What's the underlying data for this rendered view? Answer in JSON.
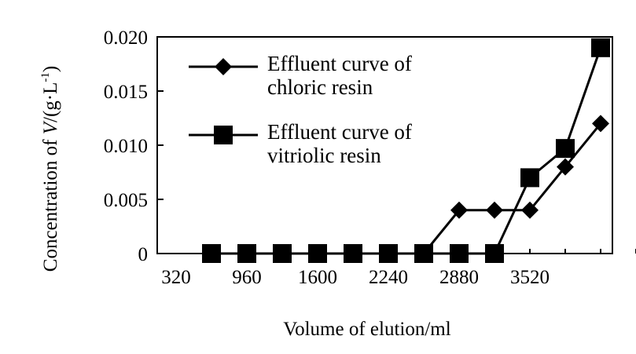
{
  "chart_data": {
    "type": "line",
    "xlabel": "Volume of elution/ml",
    "ylabel": "Concentration of V/(g·L⁻¹)",
    "ylabel_parts": {
      "prefix": "Concentration of ",
      "symbol": "V",
      "middle": "/(g·L",
      "superscript": "-1",
      "suffix": ")"
    },
    "xlim": [
      320,
      4480
    ],
    "ylim": [
      0,
      0.02
    ],
    "x_tick_labels": [
      "320",
      "960",
      "1600",
      "2240",
      "2880",
      "3520"
    ],
    "y_ticks": [
      0,
      0.005,
      0.01,
      0.015,
      0.02
    ],
    "y_tick_labels": [
      "0",
      "0.005",
      "0.010",
      "0.015",
      "0.020"
    ],
    "grid": false,
    "legend_position": "top-left",
    "series": [
      {
        "name": "Effluent curve of chloric resin",
        "legend_lines": [
          "Effluent curve of",
          "chloric resin"
        ],
        "marker": "diamond",
        "x": [
          640,
          960,
          1280,
          1600,
          1920,
          2240,
          2560,
          2880,
          3200,
          3520,
          3840,
          4160
        ],
        "y": [
          0,
          0,
          0,
          0,
          0,
          0,
          0,
          0.004,
          0.004,
          0.004,
          0.008,
          0.012
        ]
      },
      {
        "name": "Effluent curve of vitriolic resin",
        "legend_lines": [
          "Effluent curve of",
          "vitriolic resin"
        ],
        "marker": "square",
        "x": [
          640,
          960,
          1280,
          1600,
          1920,
          2240,
          2560,
          2880,
          3200,
          3520,
          3840,
          4160
        ],
        "y": [
          0,
          0,
          0,
          0,
          0,
          0,
          0,
          0,
          0,
          0.007,
          0.0097,
          0.019
        ]
      }
    ]
  }
}
